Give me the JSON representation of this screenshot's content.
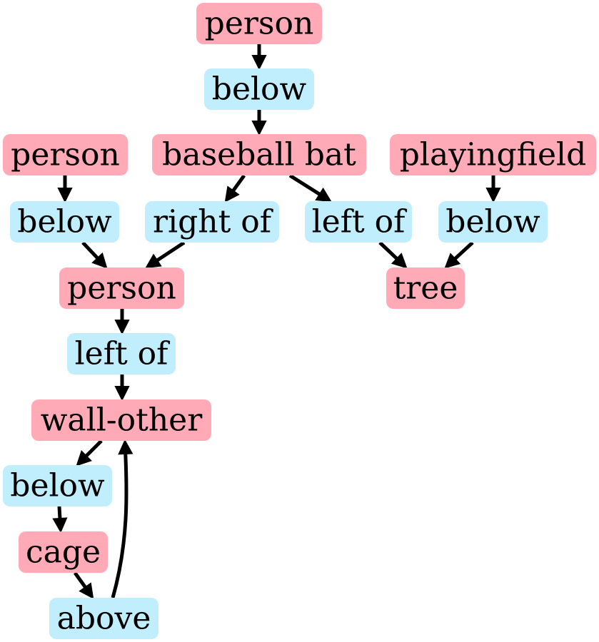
{
  "colors": {
    "object": "#ffaab6",
    "relation": "#c0eefc",
    "edge": "#000000"
  },
  "nodes": [
    {
      "id": "n1",
      "label": "person",
      "kind": "object"
    },
    {
      "id": "n2",
      "label": "below",
      "kind": "relation"
    },
    {
      "id": "n3",
      "label": "baseball bat",
      "kind": "object"
    },
    {
      "id": "n4",
      "label": "person",
      "kind": "object"
    },
    {
      "id": "n5",
      "label": "playingfield",
      "kind": "object"
    },
    {
      "id": "n6",
      "label": "below",
      "kind": "relation"
    },
    {
      "id": "n7",
      "label": "right of",
      "kind": "relation"
    },
    {
      "id": "n8",
      "label": "left of",
      "kind": "relation"
    },
    {
      "id": "n9",
      "label": "below",
      "kind": "relation"
    },
    {
      "id": "n10",
      "label": "person",
      "kind": "object"
    },
    {
      "id": "n11",
      "label": "tree",
      "kind": "object"
    },
    {
      "id": "n12",
      "label": "left of",
      "kind": "relation"
    },
    {
      "id": "n13",
      "label": "wall-other",
      "kind": "object"
    },
    {
      "id": "n14",
      "label": "below",
      "kind": "relation"
    },
    {
      "id": "n15",
      "label": "cage",
      "kind": "object"
    },
    {
      "id": "n16",
      "label": "above",
      "kind": "relation"
    }
  ],
  "edges": [
    {
      "from": "n1",
      "to": "n2"
    },
    {
      "from": "n2",
      "to": "n3"
    },
    {
      "from": "n3",
      "to": "n7"
    },
    {
      "from": "n3",
      "to": "n8"
    },
    {
      "from": "n4",
      "to": "n6"
    },
    {
      "from": "n6",
      "to": "n10"
    },
    {
      "from": "n7",
      "to": "n10"
    },
    {
      "from": "n8",
      "to": "n11"
    },
    {
      "from": "n5",
      "to": "n9"
    },
    {
      "from": "n9",
      "to": "n11"
    },
    {
      "from": "n10",
      "to": "n12"
    },
    {
      "from": "n12",
      "to": "n13"
    },
    {
      "from": "n13",
      "to": "n14"
    },
    {
      "from": "n14",
      "to": "n15"
    },
    {
      "from": "n15",
      "to": "n16"
    },
    {
      "from": "n16",
      "to": "n13"
    }
  ]
}
